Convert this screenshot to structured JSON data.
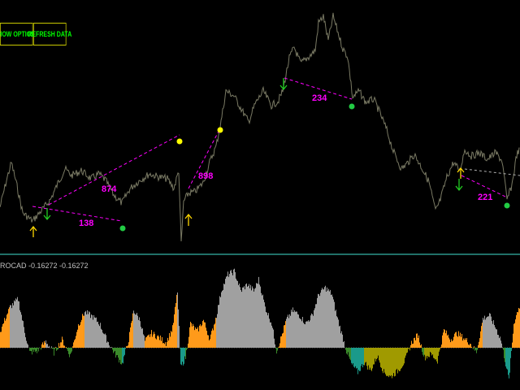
{
  "toolbar": {
    "show_options_label": "SHOW OPTIONS",
    "refresh_data_label": "REFRESH DATA"
  },
  "indicator": {
    "label": "ROCAD -0.16272 -0.16272"
  },
  "annotations": [
    {
      "text": "874"
    },
    {
      "text": "138"
    },
    {
      "text": "898"
    },
    {
      "text": "234"
    },
    {
      "text": "221"
    }
  ],
  "colors": {
    "price_line": "#7a7a64",
    "separator": "#40e0d0",
    "label": "#ff00ff",
    "arrow_up": "#ffd700",
    "arrow_down": "#22cc22",
    "dot_yellow": "#ffff00",
    "dot_green": "#22cc44",
    "hist_gray": "#a0a0a0",
    "hist_orange": "#ff9a1a",
    "hist_olive": "#a09a00",
    "hist_teal": "#1a9a8a",
    "hist_green": "#3a8a2a"
  }
}
